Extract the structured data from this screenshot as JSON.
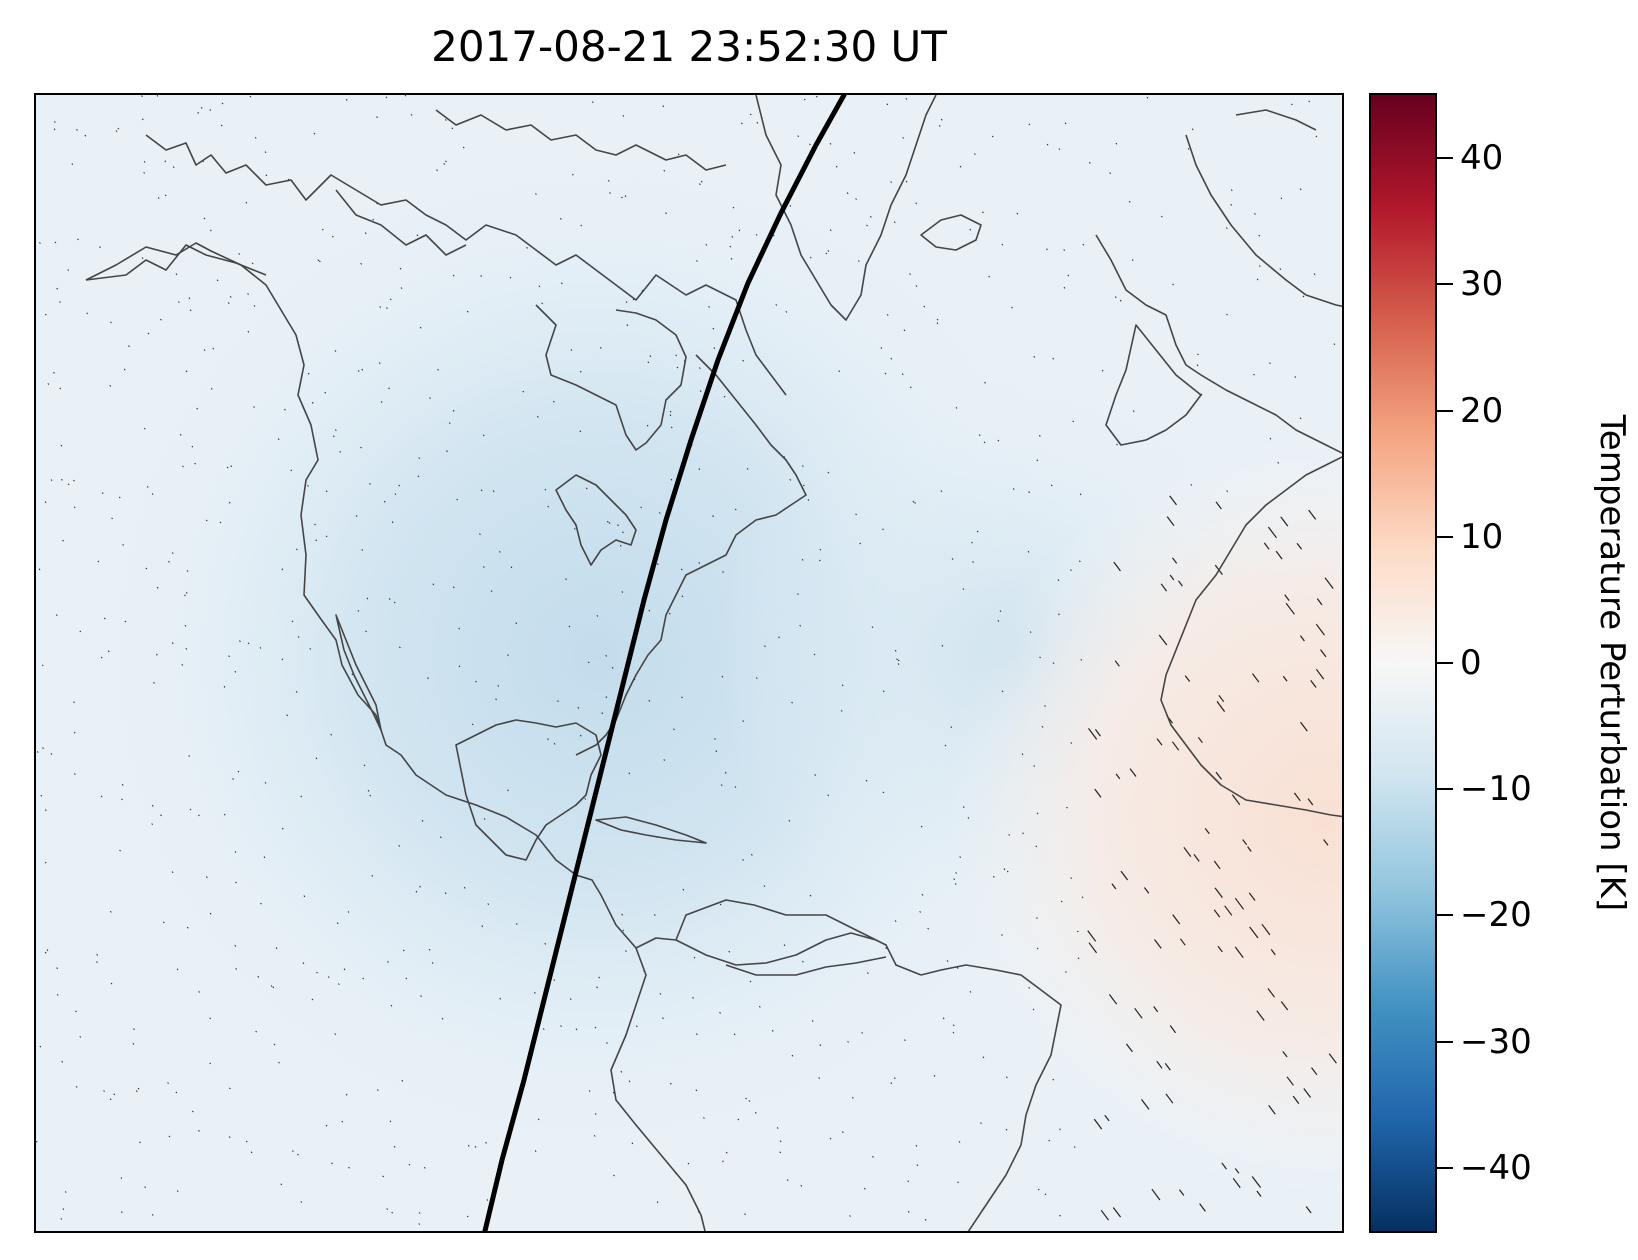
{
  "title": "2017-08-21 23:52:30 UT",
  "colorbar": {
    "label": "Temperature Perturbation [K]",
    "ticks": [
      {
        "value": 40,
        "label": "40"
      },
      {
        "value": 30,
        "label": "30"
      },
      {
        "value": 20,
        "label": "20"
      },
      {
        "value": 10,
        "label": "10"
      },
      {
        "value": 0,
        "label": "0"
      },
      {
        "value": -10,
        "label": "−10"
      },
      {
        "value": -20,
        "label": "−20"
      },
      {
        "value": -30,
        "label": "−30"
      },
      {
        "value": -40,
        "label": "−40"
      }
    ],
    "vmin": -45,
    "vmax": 45,
    "colormap": "RdBu_r",
    "colormap_stops": [
      "#053061",
      "#2166ac",
      "#4393c3",
      "#92c5de",
      "#d1e5f0",
      "#f7f7f7",
      "#fddbc7",
      "#f4a582",
      "#d6604d",
      "#b2182b",
      "#67001f"
    ]
  },
  "map": {
    "field_colors": {
      "cold_center": "#c6dded",
      "background": "#eaf2f8",
      "warm_region": "#f7e4da"
    },
    "coastline_color": "#444444",
    "track_color": "#000000"
  }
}
